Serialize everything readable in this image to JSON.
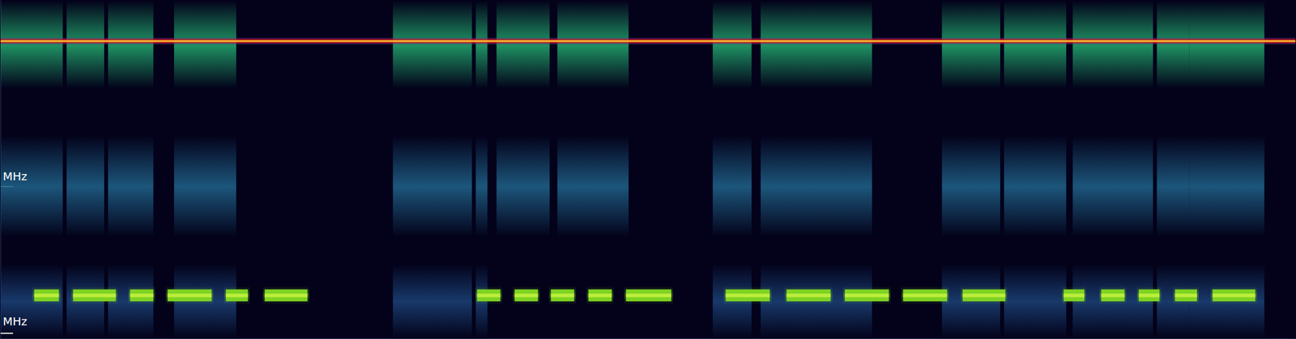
{
  "chart_data": {
    "type": "spectrogram",
    "xlim": [
      0,
      100
    ],
    "ylim": [
      0,
      100
    ],
    "yticks": [
      1.5,
      45,
      88
    ],
    "tick_labels": false,
    "grid": false,
    "axis_labels": [
      {
        "text": "MHz",
        "y": 48
      },
      {
        "text": "MHz",
        "y": 5
      }
    ],
    "carrier": {
      "y": 88,
      "color": "#ff8a00"
    },
    "bands": [
      {
        "ylim": [
          74,
          100
        ],
        "color": "#22a46c",
        "bursts": [
          [
            0,
            4.8
          ],
          [
            5.1,
            8
          ],
          [
            8.3,
            11.8
          ],
          [
            13.4,
            18.2
          ],
          [
            30.3,
            36.4
          ],
          [
            36.7,
            37.6
          ],
          [
            38.3,
            42.4
          ],
          [
            43,
            48.5
          ],
          [
            55,
            58
          ],
          [
            58.7,
            67.3
          ],
          [
            72.7,
            77.2
          ],
          [
            77.5,
            82.3
          ],
          [
            82.8,
            89
          ],
          [
            89.3,
            91.8
          ],
          [
            91.8,
            97.6
          ]
        ]
      },
      {
        "ylim": [
          30,
          60
        ],
        "color": "#1f5f86",
        "bursts": [
          [
            0,
            4.8
          ],
          [
            5.1,
            8
          ],
          [
            8.3,
            11.8
          ],
          [
            13.4,
            18.2
          ],
          [
            30.3,
            36.4
          ],
          [
            36.7,
            37.6
          ],
          [
            38.3,
            42.4
          ],
          [
            43,
            48.5
          ],
          [
            55,
            58
          ],
          [
            58.7,
            67.3
          ],
          [
            72.7,
            77.2
          ],
          [
            77.5,
            82.3
          ],
          [
            82.8,
            89
          ],
          [
            89.3,
            91.8
          ],
          [
            91.8,
            97.6
          ]
        ]
      },
      {
        "ylim": [
          0,
          22
        ],
        "color": "#1a3f73",
        "bursts": [
          [
            0,
            4.8
          ],
          [
            5.1,
            8
          ],
          [
            8.3,
            11.8
          ],
          [
            13.4,
            18.2
          ],
          [
            30.3,
            36.4
          ],
          [
            36.7,
            37.6
          ],
          [
            55,
            58
          ],
          [
            58.7,
            67.3
          ],
          [
            72.7,
            77.2
          ],
          [
            77.5,
            82.3
          ],
          [
            82.8,
            89
          ],
          [
            89.3,
            91.8
          ],
          [
            91.8,
            97.6
          ]
        ]
      }
    ],
    "packets": {
      "ylim": [
        11,
        14.5
      ],
      "color": "#7ed321",
      "bursts": [
        [
          2.6,
          4.5
        ],
        [
          5.6,
          8.9
        ],
        [
          10,
          11.8
        ],
        [
          12.9,
          16.3
        ],
        [
          17.4,
          19.1
        ],
        [
          20.4,
          23.7
        ],
        [
          36.8,
          38.6
        ],
        [
          39.7,
          41.5
        ],
        [
          42.5,
          44.3
        ],
        [
          45.4,
          47.2
        ],
        [
          48.3,
          51.8
        ],
        [
          56,
          59.4
        ],
        [
          60.7,
          64.1
        ],
        [
          65.2,
          68.6
        ],
        [
          69.7,
          73.1
        ],
        [
          74.3,
          77.6
        ],
        [
          82.1,
          83.7
        ],
        [
          85,
          86.8
        ],
        [
          87.9,
          89.5
        ],
        [
          90.7,
          92.4
        ],
        [
          93.6,
          96.9
        ]
      ]
    }
  }
}
